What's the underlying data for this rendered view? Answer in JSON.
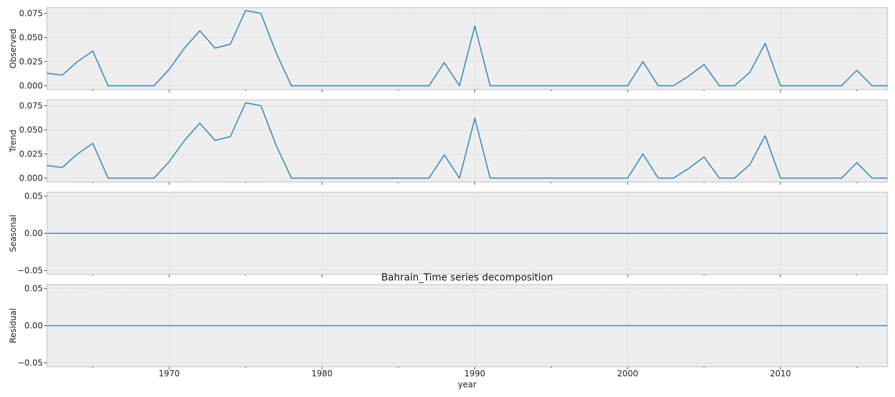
{
  "chart_data": {
    "type": "line",
    "title": "Bahrain_Time series decomposition",
    "xlabel": "year",
    "x_ticks": [
      1970,
      1980,
      1990,
      2000,
      2010
    ],
    "x_tick_labels": [
      "1970",
      "1980",
      "1990",
      "2000",
      "2010"
    ],
    "xlim": [
      1962,
      2017
    ],
    "grid": true,
    "line_color": "#348ABD",
    "background_color": "#EEEEEE",
    "years": [
      1962,
      1963,
      1964,
      1965,
      1966,
      1967,
      1968,
      1969,
      1970,
      1971,
      1972,
      1973,
      1974,
      1975,
      1976,
      1977,
      1978,
      1979,
      1980,
      1981,
      1982,
      1983,
      1984,
      1985,
      1986,
      1987,
      1988,
      1989,
      1990,
      1991,
      1992,
      1993,
      1994,
      1995,
      1996,
      1997,
      1998,
      1999,
      2000,
      2001,
      2002,
      2003,
      2004,
      2005,
      2006,
      2007,
      2008,
      2009,
      2010,
      2011,
      2012,
      2013,
      2014,
      2015,
      2016,
      2017
    ],
    "panels": [
      {
        "name": "Observed",
        "ylabel": "Observed",
        "ylim": [
          -0.004,
          0.081
        ],
        "y_ticks": [
          0.0,
          0.025,
          0.05,
          0.075
        ],
        "y_tick_labels": [
          "0.000",
          "0.025",
          "0.050",
          "0.075"
        ],
        "values": [
          0.013,
          0.011,
          0.025,
          0.036,
          0,
          0,
          0,
          0,
          0.017,
          0.039,
          0.057,
          0.039,
          0.043,
          0.078,
          0.075,
          0.034,
          0,
          0,
          0,
          0,
          0,
          0,
          0,
          0,
          0,
          0,
          0.024,
          0,
          0.062,
          0,
          0,
          0,
          0,
          0,
          0,
          0,
          0,
          0,
          0,
          0.025,
          0,
          0,
          0.01,
          0.022,
          0,
          0,
          0.014,
          0.044,
          0,
          0,
          0,
          0,
          0,
          0.016,
          0,
          0
        ]
      },
      {
        "name": "Trend",
        "ylabel": "Trend",
        "ylim": [
          -0.004,
          0.081
        ],
        "y_ticks": [
          0.0,
          0.025,
          0.05,
          0.075
        ],
        "y_tick_labels": [
          "0.000",
          "0.025",
          "0.050",
          "0.075"
        ],
        "values": [
          0.013,
          0.011,
          0.025,
          0.036,
          0,
          0,
          0,
          0,
          0.017,
          0.039,
          0.057,
          0.039,
          0.043,
          0.078,
          0.075,
          0.034,
          0,
          0,
          0,
          0,
          0,
          0,
          0,
          0,
          0,
          0,
          0.024,
          0,
          0.062,
          0,
          0,
          0,
          0,
          0,
          0,
          0,
          0,
          0,
          0,
          0.025,
          0,
          0,
          0.01,
          0.022,
          0,
          0,
          0.014,
          0.044,
          0,
          0,
          0,
          0,
          0,
          0.016,
          0,
          0
        ]
      },
      {
        "name": "Seasonal",
        "ylabel": "Seasonal",
        "ylim": [
          -0.055,
          0.055
        ],
        "y_ticks": [
          -0.05,
          0.0,
          0.05
        ],
        "y_tick_labels": [
          "−0.05",
          "0.00",
          "0.05"
        ],
        "values": [
          0,
          0,
          0,
          0,
          0,
          0,
          0,
          0,
          0,
          0,
          0,
          0,
          0,
          0,
          0,
          0,
          0,
          0,
          0,
          0,
          0,
          0,
          0,
          0,
          0,
          0,
          0,
          0,
          0,
          0,
          0,
          0,
          0,
          0,
          0,
          0,
          0,
          0,
          0,
          0,
          0,
          0,
          0,
          0,
          0,
          0,
          0,
          0,
          0,
          0,
          0,
          0,
          0,
          0,
          0,
          0
        ]
      },
      {
        "name": "Residual",
        "ylabel": "Residual",
        "ylim": [
          -0.055,
          0.055
        ],
        "y_ticks": [
          -0.05,
          0.0,
          0.05
        ],
        "y_tick_labels": [
          "−0.05",
          "0.00",
          "0.05"
        ],
        "values": [
          0,
          0,
          0,
          0,
          0,
          0,
          0,
          0,
          0,
          0,
          0,
          0,
          0,
          0,
          0,
          0,
          0,
          0,
          0,
          0,
          0,
          0,
          0,
          0,
          0,
          0,
          0,
          0,
          0,
          0,
          0,
          0,
          0,
          0,
          0,
          0,
          0,
          0,
          0,
          0,
          0,
          0,
          0,
          0,
          0,
          0,
          0,
          0,
          0,
          0,
          0,
          0,
          0,
          0,
          0,
          0
        ]
      }
    ]
  }
}
